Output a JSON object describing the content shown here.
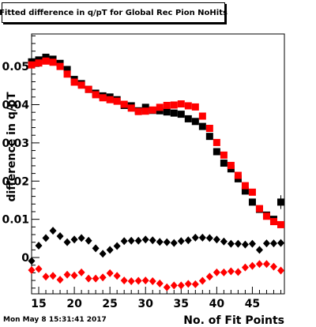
{
  "title": "Fitted difference in q/pT for Global Rec Pion NoHits",
  "timestamp": "Mon May  8 15:31:41 2017",
  "chart_data": {
    "type": "scatter",
    "xlabel": "No. of Fit Points",
    "ylabel": "difference in q/pT",
    "xlim": [
      14,
      49.5
    ],
    "ylim": [
      -0.0095,
      0.0585
    ],
    "x_ticks": [
      "15",
      "20",
      "25",
      "30",
      "35",
      "40",
      "45"
    ],
    "y_ticks": [
      "0",
      "0.01",
      "0.02",
      "0.03",
      "0.04",
      "0.05"
    ],
    "grid": false,
    "series": [
      {
        "marker": "square",
        "color": "#000000",
        "x": [
          14,
          15,
          16,
          17,
          18,
          19,
          20,
          21,
          22,
          23,
          24,
          25,
          26,
          27,
          28,
          29,
          30,
          31,
          32,
          33,
          34,
          35,
          36,
          37,
          38,
          39,
          40,
          41,
          42,
          43,
          44,
          45,
          46,
          47,
          48,
          49
        ],
        "y": [
          0.0512,
          0.0517,
          0.0524,
          0.0519,
          0.0508,
          0.0492,
          0.0466,
          0.0455,
          0.044,
          0.043,
          0.0423,
          0.042,
          0.0413,
          0.0398,
          0.0397,
          0.0384,
          0.0393,
          0.0385,
          0.0384,
          0.0381,
          0.0378,
          0.0375,
          0.0363,
          0.0356,
          0.0343,
          0.0317,
          0.0277,
          0.0247,
          0.0232,
          0.0206,
          0.0174,
          0.0145,
          0.0126,
          0.0111,
          0.01,
          0.0145
        ],
        "err": [
          0.0008,
          0.0008,
          0.0008,
          0.0007,
          0.0007,
          0.0006,
          0.0006,
          0.0005,
          0.0005,
          0.0005,
          0.0005,
          0.0005,
          0.0005,
          0.0005,
          0.0005,
          0.0005,
          0.0005,
          0.0005,
          0.0005,
          0.0005,
          0.0005,
          0.0005,
          0.0005,
          0.0005,
          0.0005,
          0.0005,
          0.0005,
          0.0005,
          0.0005,
          0.0005,
          0.0005,
          0.0005,
          0.0006,
          0.0006,
          0.0006,
          0.0018
        ]
      },
      {
        "marker": "square",
        "color": "#ff0000",
        "x": [
          14,
          15,
          16,
          17,
          18,
          19,
          20,
          21,
          22,
          23,
          24,
          25,
          26,
          27,
          28,
          29,
          30,
          31,
          32,
          33,
          34,
          35,
          36,
          37,
          38,
          39,
          40,
          41,
          42,
          43,
          44,
          45,
          46,
          47,
          48,
          49
        ],
        "y": [
          0.0504,
          0.0509,
          0.0514,
          0.0511,
          0.05,
          0.048,
          0.0459,
          0.0451,
          0.044,
          0.0426,
          0.0418,
          0.0413,
          0.0409,
          0.0401,
          0.0391,
          0.0382,
          0.0383,
          0.0386,
          0.0393,
          0.0398,
          0.0399,
          0.0402,
          0.0397,
          0.0394,
          0.037,
          0.0338,
          0.0301,
          0.0268,
          0.0241,
          0.0215,
          0.0188,
          0.0171,
          0.0128,
          0.0108,
          0.0094,
          0.0086
        ],
        "err": [
          0.0008,
          0.0008,
          0.0008,
          0.0007,
          0.0007,
          0.0006,
          0.0006,
          0.0005,
          0.0005,
          0.0005,
          0.0005,
          0.0005,
          0.0005,
          0.0005,
          0.0005,
          0.0005,
          0.0005,
          0.0005,
          0.0005,
          0.0005,
          0.0005,
          0.0005,
          0.0005,
          0.0005,
          0.0005,
          0.0005,
          0.0005,
          0.0005,
          0.0005,
          0.0005,
          0.0005,
          0.0005,
          0.0006,
          0.0006,
          0.0006,
          0.0006
        ]
      },
      {
        "marker": "diamond",
        "color": "#000000",
        "x": [
          14,
          15,
          16,
          17,
          18,
          19,
          20,
          21,
          22,
          23,
          24,
          25,
          26,
          27,
          28,
          29,
          30,
          31,
          32,
          33,
          34,
          35,
          36,
          37,
          38,
          39,
          40,
          41,
          42,
          43,
          44,
          45,
          46,
          47,
          48,
          49
        ],
        "y": [
          -0.0009,
          0.0031,
          0.0051,
          0.007,
          0.0056,
          0.004,
          0.0047,
          0.0051,
          0.0044,
          0.0024,
          0.001,
          0.002,
          0.003,
          0.0043,
          0.0044,
          0.0044,
          0.0047,
          0.0045,
          0.0041,
          0.004,
          0.0038,
          0.0043,
          0.0045,
          0.0052,
          0.0052,
          0.0051,
          0.0047,
          0.0042,
          0.0036,
          0.0036,
          0.0034,
          0.0036,
          0.002,
          0.0037,
          0.0037,
          0.0038
        ],
        "err": [
          0.001,
          0.0008,
          0.0006,
          0.0006,
          0.0005,
          0.0004,
          0.0004,
          0.0004,
          0.0004,
          0.0004,
          0.0004,
          0.0004,
          0.0004,
          0.0004,
          0.0004,
          0.0004,
          0.0004,
          0.0004,
          0.0004,
          0.0004,
          0.0004,
          0.0004,
          0.0004,
          0.0004,
          0.0004,
          0.0004,
          0.0004,
          0.0004,
          0.0004,
          0.0004,
          0.0004,
          0.0004,
          0.0004,
          0.0004,
          0.0004,
          0.0004
        ]
      },
      {
        "marker": "diamond",
        "color": "#ff0000",
        "x": [
          14,
          15,
          16,
          17,
          18,
          19,
          20,
          21,
          22,
          23,
          24,
          25,
          26,
          27,
          28,
          29,
          30,
          31,
          32,
          33,
          34,
          35,
          36,
          37,
          38,
          39,
          40,
          41,
          42,
          43,
          44,
          45,
          46,
          47,
          48,
          49
        ],
        "y": [
          -0.0033,
          -0.003,
          -0.005,
          -0.0048,
          -0.0058,
          -0.0045,
          -0.0047,
          -0.0039,
          -0.0055,
          -0.0055,
          -0.0052,
          -0.0041,
          -0.0048,
          -0.006,
          -0.0062,
          -0.0061,
          -0.006,
          -0.0062,
          -0.0068,
          -0.0078,
          -0.0073,
          -0.0073,
          -0.0069,
          -0.007,
          -0.0061,
          -0.005,
          -0.0039,
          -0.0039,
          -0.0036,
          -0.0038,
          -0.0026,
          -0.0022,
          -0.0017,
          -0.0017,
          -0.0024,
          -0.0034
        ],
        "err": [
          0.0004,
          0.0004,
          0.0004,
          0.0004,
          0.0004,
          0.0004,
          0.0004,
          0.0004,
          0.0004,
          0.0004,
          0.0004,
          0.0004,
          0.0004,
          0.0004,
          0.0004,
          0.0004,
          0.0004,
          0.0004,
          0.0004,
          0.0004,
          0.0004,
          0.0004,
          0.0004,
          0.0004,
          0.0004,
          0.0004,
          0.0004,
          0.0004,
          0.0004,
          0.0004,
          0.0004,
          0.0004,
          0.0004,
          0.0004,
          0.0004,
          0.0004
        ]
      }
    ]
  }
}
